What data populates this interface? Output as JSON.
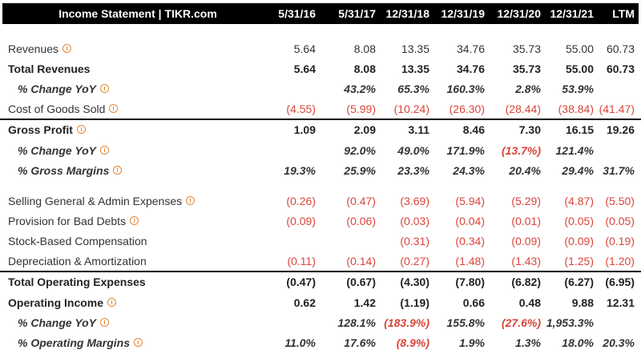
{
  "header": {
    "title": "Income Statement | TIKR.com",
    "columns": [
      "5/31/16",
      "5/31/17",
      "12/31/18",
      "12/31/19",
      "12/31/20",
      "12/31/21",
      "LTM"
    ]
  },
  "rows": [
    {
      "label": "Revenues",
      "values": [
        "5.64",
        "8.08",
        "13.35",
        "34.76",
        "35.73",
        "55.00",
        "60.73"
      ],
      "style": "normal",
      "info": true
    },
    {
      "label": "Total Revenues",
      "values": [
        "5.64",
        "8.08",
        "13.35",
        "34.76",
        "35.73",
        "55.00",
        "60.73"
      ],
      "style": "bold",
      "info": false
    },
    {
      "label": "% Change YoY",
      "values": [
        "",
        "43.2%",
        "65.3%",
        "160.3%",
        "2.8%",
        "53.9%",
        ""
      ],
      "style": "pct",
      "info": true
    },
    {
      "label": "Cost of Goods Sold",
      "values": [
        "(4.55)",
        "(5.99)",
        "(10.24)",
        "(26.30)",
        "(28.44)",
        "(38.84)",
        "(41.47)"
      ],
      "style": "normal",
      "info": true
    },
    {
      "label": "Gross Profit",
      "values": [
        "1.09",
        "2.09",
        "3.11",
        "8.46",
        "7.30",
        "16.15",
        "19.26"
      ],
      "style": "bold",
      "info": true,
      "rule": true
    },
    {
      "label": "% Change YoY",
      "values": [
        "",
        "92.0%",
        "49.0%",
        "171.9%",
        "(13.7%)",
        "121.4%",
        ""
      ],
      "style": "pct",
      "info": true
    },
    {
      "label": "% Gross Margins",
      "values": [
        "19.3%",
        "25.9%",
        "23.3%",
        "24.3%",
        "20.4%",
        "29.4%",
        "31.7%"
      ],
      "style": "pct",
      "info": true
    },
    {
      "label": "Selling General & Admin Expenses",
      "values": [
        "(0.26)",
        "(0.47)",
        "(3.69)",
        "(5.94)",
        "(5.29)",
        "(4.87)",
        "(5.50)"
      ],
      "style": "normal",
      "info": true
    },
    {
      "label": "Provision for Bad Debts",
      "values": [
        "(0.09)",
        "(0.06)",
        "(0.03)",
        "(0.04)",
        "(0.01)",
        "(0.05)",
        "(0.05)"
      ],
      "style": "normal",
      "info": true
    },
    {
      "label": "Stock-Based Compensation",
      "values": [
        "",
        "",
        "(0.31)",
        "(0.34)",
        "(0.09)",
        "(0.09)",
        "(0.19)"
      ],
      "style": "normal",
      "info": false
    },
    {
      "label": "Depreciation & Amortization",
      "values": [
        "(0.11)",
        "(0.14)",
        "(0.27)",
        "(1.48)",
        "(1.43)",
        "(1.25)",
        "(1.20)"
      ],
      "style": "normal",
      "info": false
    },
    {
      "label": "Total Operating Expenses",
      "values": [
        "(0.47)",
        "(0.67)",
        "(4.30)",
        "(7.80)",
        "(6.82)",
        "(6.27)",
        "(6.95)"
      ],
      "style": "bold",
      "info": false,
      "rule": true
    },
    {
      "label": "Operating Income",
      "values": [
        "0.62",
        "1.42",
        "(1.19)",
        "0.66",
        "0.48",
        "9.88",
        "12.31"
      ],
      "style": "bold",
      "info": true
    },
    {
      "label": "% Change YoY",
      "values": [
        "",
        "128.1%",
        "(183.9%)",
        "155.8%",
        "(27.6%)",
        "1,953.3%",
        ""
      ],
      "style": "pct",
      "info": true
    },
    {
      "label": "% Operating Margins",
      "values": [
        "11.0%",
        "17.6%",
        "(8.9%)",
        "1.9%",
        "1.3%",
        "18.0%",
        "20.3%"
      ],
      "style": "pct",
      "info": true
    }
  ],
  "colors": {
    "header_bg": "#000000",
    "header_text": "#ffffff",
    "negative": "#d9453a",
    "info_icon": "#e0873a"
  }
}
